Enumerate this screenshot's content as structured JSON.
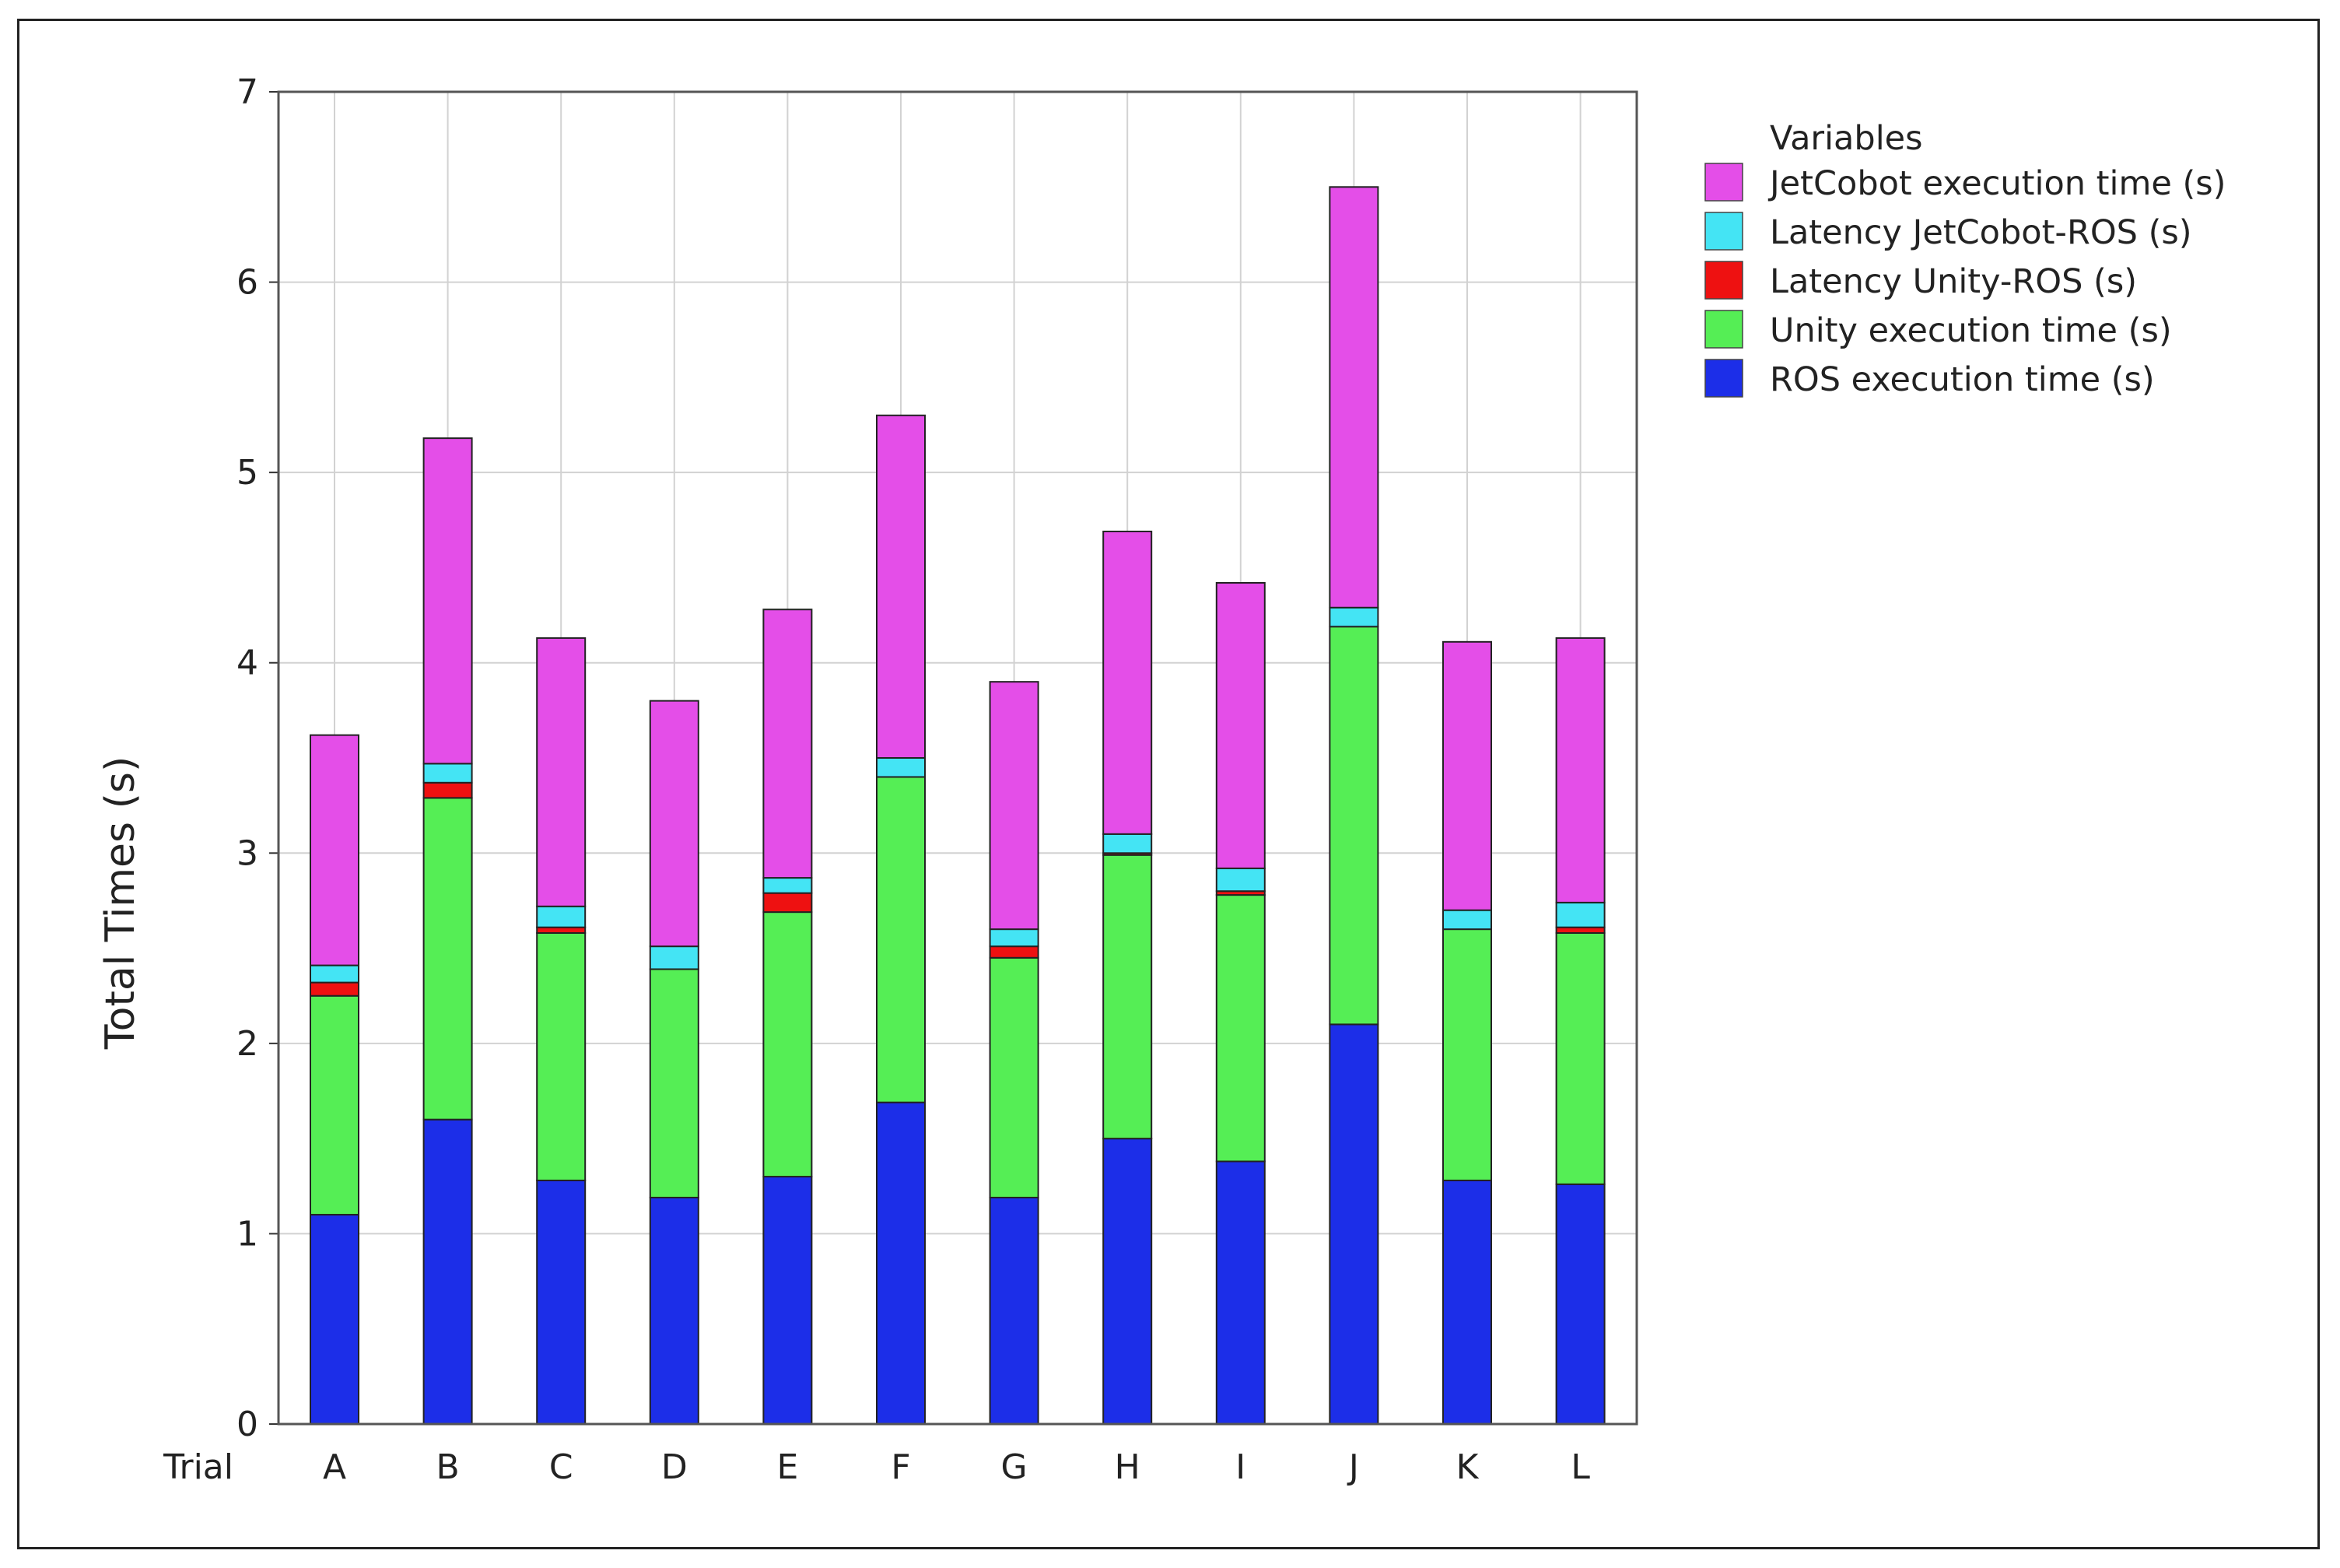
{
  "chart_data": {
    "type": "bar",
    "stacked": true,
    "ylabel": "Total Times (s)",
    "xlabel": "Trial",
    "ylim": [
      0,
      7
    ],
    "yticks": [
      0,
      1,
      2,
      3,
      4,
      5,
      6,
      7
    ],
    "grid": true,
    "categories": [
      "A",
      "B",
      "C",
      "D",
      "E",
      "F",
      "G",
      "H",
      "I",
      "J",
      "K",
      "L"
    ],
    "legend": {
      "title": "Variables",
      "placement": "top-right outside"
    },
    "series": [
      {
        "name": "ROS execution time (s)",
        "color": "#1c2ee8",
        "values": [
          1.1,
          1.6,
          1.28,
          1.19,
          1.3,
          1.69,
          1.19,
          1.5,
          1.38,
          2.1,
          1.28,
          1.26
        ]
      },
      {
        "name": "Unity execution time (s)",
        "color": "#55ee55",
        "values": [
          1.15,
          1.69,
          1.3,
          1.2,
          1.39,
          1.71,
          1.26,
          1.49,
          1.4,
          2.09,
          1.32,
          1.32
        ]
      },
      {
        "name": "Latency Unity-ROS (s)",
        "color": "#ee1111",
        "values": [
          0.07,
          0.08,
          0.03,
          0.0,
          0.1,
          0.0,
          0.06,
          0.01,
          0.02,
          0.0,
          0.0,
          0.03
        ]
      },
      {
        "name": "Latency JetCobot-ROS (s)",
        "color": "#44e4f4",
        "values": [
          0.09,
          0.1,
          0.11,
          0.12,
          0.08,
          0.1,
          0.09,
          0.1,
          0.12,
          0.1,
          0.1,
          0.13
        ]
      },
      {
        "name": "JetCobot execution time (s)",
        "color": "#e44ee8",
        "values": [
          1.21,
          1.71,
          1.41,
          1.29,
          1.41,
          1.8,
          1.3,
          1.59,
          1.5,
          2.21,
          1.41,
          1.39
        ]
      }
    ],
    "legend_order": [
      "JetCobot execution time (s)",
      "Latency JetCobot-ROS (s)",
      "Latency Unity-ROS (s)",
      "Unity execution time (s)",
      "ROS execution time (s)"
    ]
  }
}
